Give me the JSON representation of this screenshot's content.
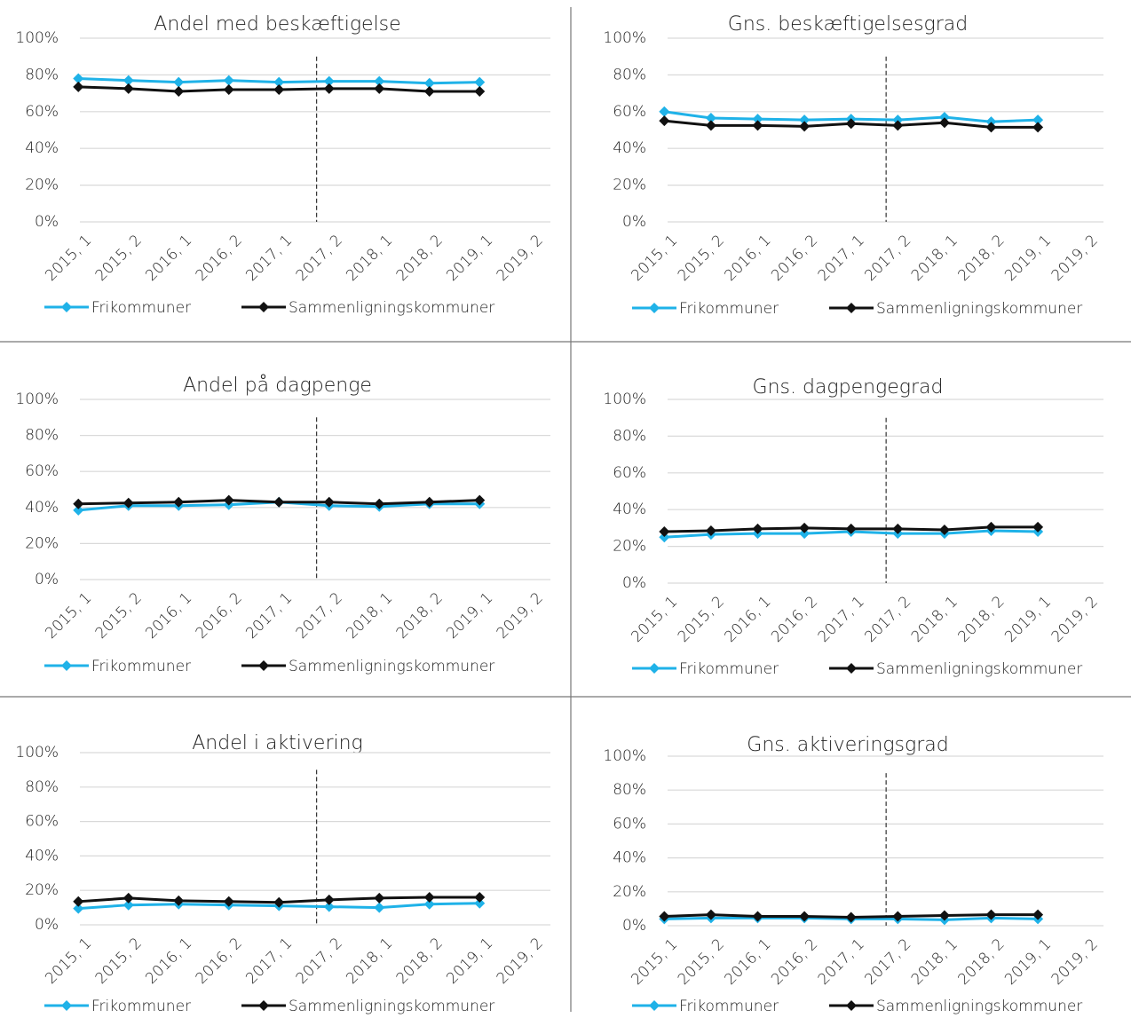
{
  "chart_data": [
    {
      "type": "line",
      "title": "Andel med beskæftigelse",
      "categories": [
        "2015, 1",
        "2015, 2",
        "2016, 1",
        "2016, 2",
        "2017, 1",
        "2017, 2",
        "2018, 1",
        "2018, 2",
        "2019, 1",
        "2019, 2"
      ],
      "series": [
        {
          "name": "Frikommuner",
          "color": "#1fb2e8",
          "values": [
            78,
            77,
            76,
            77,
            76,
            76.5,
            76.5,
            75.5,
            76,
            null
          ]
        },
        {
          "name": "Sammenligningskommuner",
          "color": "#111111",
          "values": [
            73.5,
            72.5,
            71,
            72,
            72,
            72.5,
            72.5,
            71,
            71,
            null
          ]
        }
      ],
      "ylim": [
        0,
        100
      ],
      "yticks": [
        {
          "value": 0,
          "label": "0%"
        },
        {
          "value": 20,
          "label": "20%"
        },
        {
          "value": 40,
          "label": "40%"
        },
        {
          "value": 60,
          "label": "60%"
        },
        {
          "value": 80,
          "label": "80%"
        },
        {
          "value": 100,
          "label": "100%"
        }
      ],
      "grid": true
    },
    {
      "type": "line",
      "title": "Gns. beskæftigelsesgrad",
      "categories": [
        "2015, 1",
        "2015, 2",
        "2016, 1",
        "2016, 2",
        "2017, 1",
        "2017, 2",
        "2018, 1",
        "2018, 2",
        "2019, 1",
        "2019, 2"
      ],
      "series": [
        {
          "name": "Frikommuner",
          "color": "#1fb2e8",
          "values": [
            60,
            56.5,
            56,
            55.5,
            56,
            55.5,
            57,
            54.5,
            55.5,
            null
          ]
        },
        {
          "name": "Sammenligningskommuner",
          "color": "#111111",
          "values": [
            55,
            52.5,
            52.5,
            52,
            53.5,
            52.5,
            54,
            51.5,
            51.5,
            null
          ]
        }
      ],
      "ylim": [
        0,
        100
      ],
      "yticks": [
        {
          "value": 0,
          "label": "0%"
        },
        {
          "value": 20,
          "label": "20%"
        },
        {
          "value": 40,
          "label": "40%"
        },
        {
          "value": 60,
          "label": "60%"
        },
        {
          "value": 80,
          "label": "80%"
        },
        {
          "value": 100,
          "label": "100%"
        }
      ],
      "grid": true
    },
    {
      "type": "line",
      "title": "Andel på dagpenge",
      "categories": [
        "2015, 1",
        "2015, 2",
        "2016, 1",
        "2016, 2",
        "2017, 1",
        "2017, 2",
        "2018, 1",
        "2018, 2",
        "2019, 1",
        "2019, 2"
      ],
      "series": [
        {
          "name": "Frikommuner",
          "color": "#1fb2e8",
          "values": [
            38.5,
            41,
            41,
            41.5,
            43,
            41,
            40.5,
            42,
            42,
            null
          ]
        },
        {
          "name": "Sammenligningskommuner",
          "color": "#111111",
          "values": [
            42,
            42.5,
            43,
            44,
            43,
            43,
            42,
            43,
            44,
            null
          ]
        }
      ],
      "ylim": [
        0,
        100
      ],
      "yticks": [
        {
          "value": 0,
          "label": "0%"
        },
        {
          "value": 20,
          "label": "20%"
        },
        {
          "value": 40,
          "label": "40%"
        },
        {
          "value": 60,
          "label": "60%"
        },
        {
          "value": 80,
          "label": "80%"
        },
        {
          "value": 100,
          "label": "100%"
        }
      ],
      "grid": true
    },
    {
      "type": "line",
      "title": "Gns. dagpengegrad",
      "categories": [
        "2015, 1",
        "2015, 2",
        "2016, 1",
        "2016, 2",
        "2017, 1",
        "2017, 2",
        "2018, 1",
        "2018, 2",
        "2019, 1",
        "2019, 2"
      ],
      "series": [
        {
          "name": "Frikommuner",
          "color": "#1fb2e8",
          "values": [
            25,
            26.5,
            27,
            27,
            28,
            27,
            27,
            28.5,
            28,
            null
          ]
        },
        {
          "name": "Sammenligningskommuner",
          "color": "#111111",
          "values": [
            28,
            28.5,
            29.5,
            30,
            29.5,
            29.5,
            29,
            30.5,
            30.5,
            null
          ]
        }
      ],
      "ylim": [
        0,
        100
      ],
      "yticks": [
        {
          "value": 0,
          "label": "0%"
        },
        {
          "value": 20,
          "label": "20%"
        },
        {
          "value": 40,
          "label": "40%"
        },
        {
          "value": 60,
          "label": "60%"
        },
        {
          "value": 80,
          "label": "80%"
        },
        {
          "value": 100,
          "label": "100%"
        }
      ],
      "grid": true
    },
    {
      "type": "line",
      "title": "Andel i aktivering",
      "categories": [
        "2015, 1",
        "2015, 2",
        "2016, 1",
        "2016, 2",
        "2017, 1",
        "2017, 2",
        "2018, 1",
        "2018, 2",
        "2019, 1",
        "2019, 2"
      ],
      "series": [
        {
          "name": "Frikommuner",
          "color": "#1fb2e8",
          "values": [
            9.5,
            11.5,
            12,
            11.5,
            11,
            10.5,
            10,
            12,
            12.5,
            null
          ]
        },
        {
          "name": "Sammenligningskommuner",
          "color": "#111111",
          "values": [
            13.5,
            15.5,
            14,
            13.5,
            13,
            14.5,
            15.5,
            16,
            16,
            null
          ]
        }
      ],
      "ylim": [
        0,
        100
      ],
      "yticks": [
        {
          "value": 0,
          "label": "0%"
        },
        {
          "value": 20,
          "label": "20%"
        },
        {
          "value": 40,
          "label": "40%"
        },
        {
          "value": 60,
          "label": "60%"
        },
        {
          "value": 80,
          "label": "80%"
        },
        {
          "value": 100,
          "label": "100%"
        }
      ],
      "grid": true
    },
    {
      "type": "line",
      "title": "Gns. aktiveringsgrad",
      "categories": [
        "2015, 1",
        "2015, 2",
        "2016, 1",
        "2016, 2",
        "2017, 1",
        "2017, 2",
        "2018, 1",
        "2018, 2",
        "2019, 1",
        "2019, 2"
      ],
      "series": [
        {
          "name": "Frikommuner",
          "color": "#1fb2e8",
          "values": [
            4,
            4.5,
            4.5,
            4.5,
            4,
            4,
            3.5,
            4.5,
            4,
            null
          ]
        },
        {
          "name": "Sammenligningskommuner",
          "color": "#111111",
          "values": [
            5.5,
            6.5,
            5.5,
            5.5,
            5,
            5.5,
            6,
            6.5,
            6.5,
            null
          ]
        }
      ],
      "ylim": [
        0,
        100
      ],
      "yticks": [
        {
          "value": 0,
          "label": "0%"
        },
        {
          "value": 20,
          "label": "20%"
        },
        {
          "value": 40,
          "label": "40%"
        },
        {
          "value": 60,
          "label": "60%"
        },
        {
          "value": 80,
          "label": "80%"
        },
        {
          "value": 100,
          "label": "100%"
        }
      ],
      "grid": true
    }
  ]
}
